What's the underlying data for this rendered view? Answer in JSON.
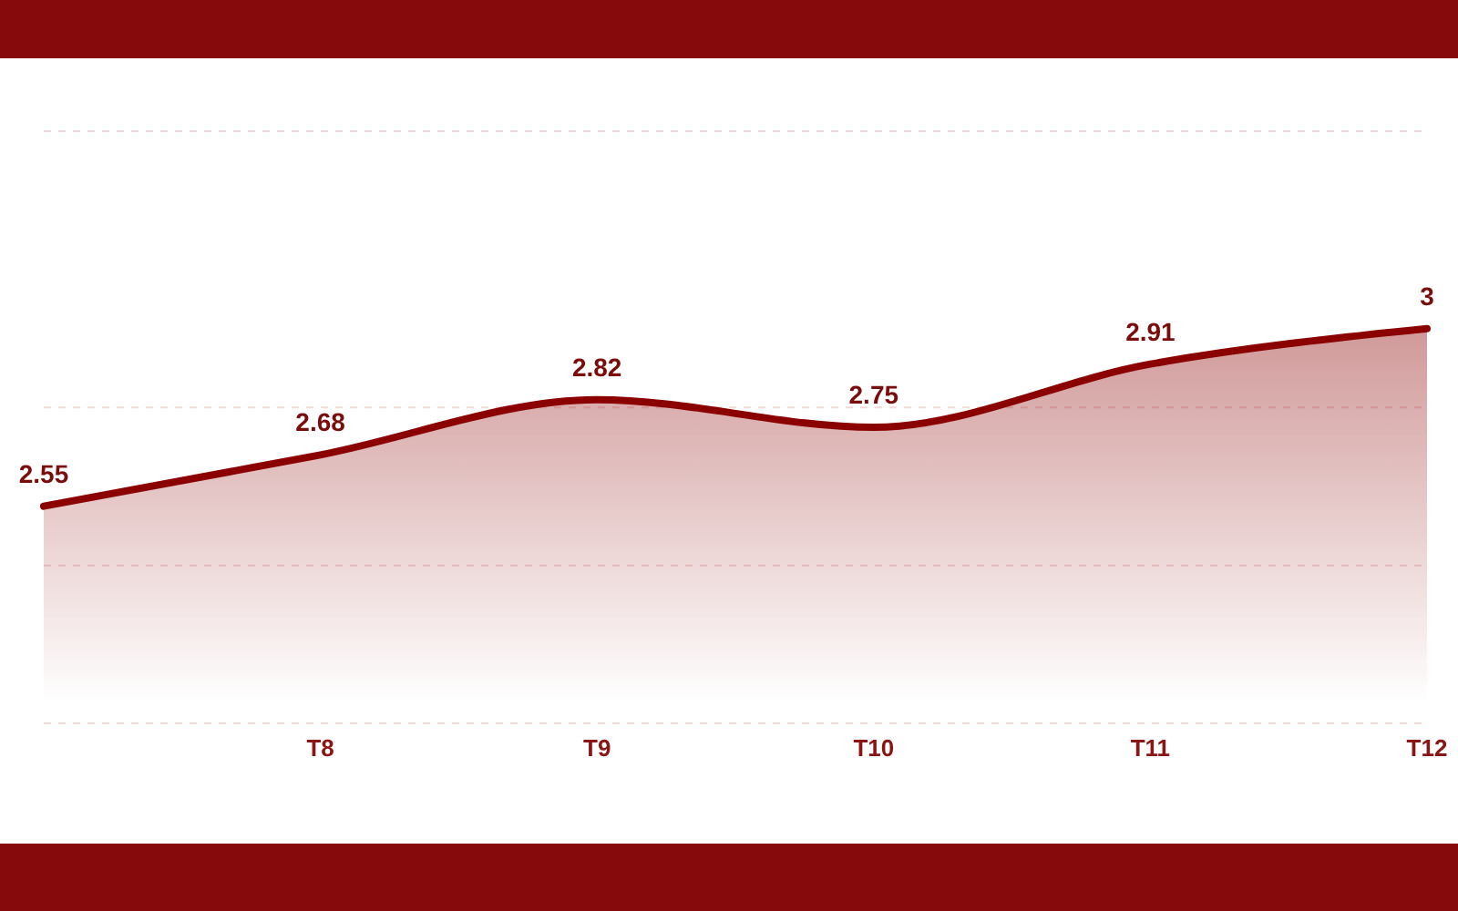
{
  "chart_data": {
    "type": "area",
    "categories": [
      null,
      "T8",
      "T9",
      "T10",
      "T11",
      "T12"
    ],
    "values": [
      2.55,
      2.68,
      2.82,
      2.75,
      2.91,
      3
    ],
    "color": "#8b0000",
    "ylim": [
      2,
      3.5
    ],
    "yticks": [
      {
        "value": 2,
        "label": null
      },
      {
        "value": 2.4,
        "label": null
      },
      {
        "value": 2.8,
        "label": null
      },
      {
        "value": 3.5,
        "label": null
      }
    ],
    "tick_labels": "x",
    "grid": "y",
    "data_labels": true
  }
}
